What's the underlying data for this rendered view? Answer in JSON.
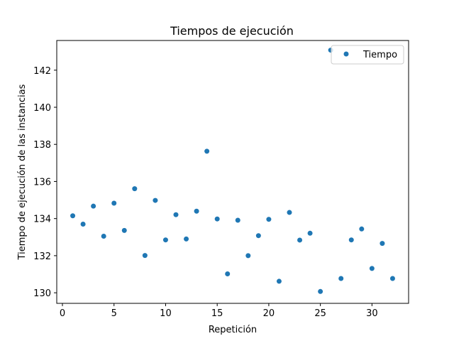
{
  "chart_data": {
    "type": "scatter",
    "title": "Tiempos de ejecución",
    "xlabel": "Repetición",
    "ylabel": "Tiempo de ejecución de las instancias",
    "xlim": [
      -0.55,
      33.55
    ],
    "ylim": [
      129.43,
      143.6
    ],
    "xticks": [
      0,
      5,
      10,
      15,
      20,
      25,
      30
    ],
    "yticks": [
      130,
      132,
      134,
      136,
      138,
      140,
      142
    ],
    "grid": false,
    "legend_position": "top-right",
    "color": "#1f77b4",
    "series": [
      {
        "name": "Tiempo",
        "x": [
          1,
          2,
          3,
          4,
          5,
          6,
          7,
          8,
          9,
          10,
          11,
          12,
          13,
          14,
          15,
          16,
          17,
          18,
          19,
          20,
          21,
          22,
          23,
          24,
          25,
          26,
          27,
          28,
          29,
          30,
          31,
          32
        ],
        "y": [
          134.15,
          133.7,
          134.67,
          133.05,
          134.83,
          133.36,
          135.61,
          132.01,
          134.98,
          132.85,
          134.21,
          132.9,
          134.4,
          137.63,
          133.98,
          131.02,
          133.91,
          132.0,
          133.08,
          133.96,
          130.62,
          134.33,
          132.84,
          133.21,
          130.07,
          143.08,
          130.77,
          132.85,
          133.44,
          131.31,
          132.66,
          130.77
        ]
      }
    ]
  }
}
